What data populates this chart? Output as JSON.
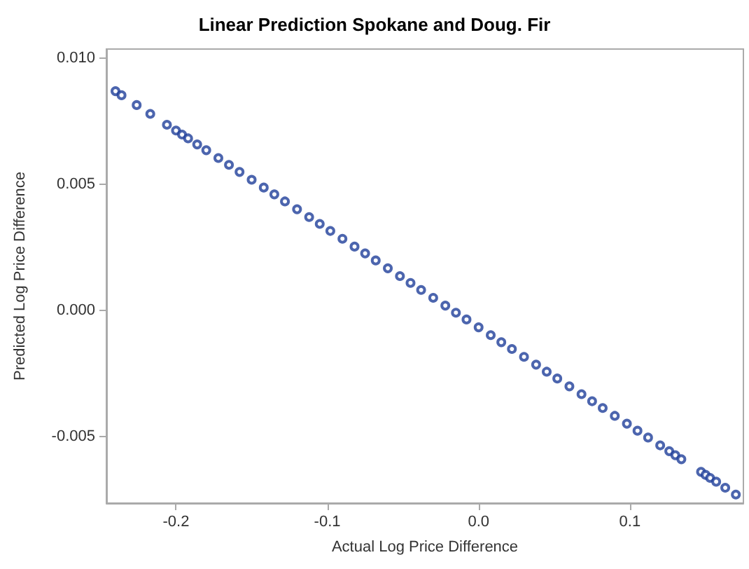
{
  "chart_data": {
    "type": "scatter",
    "title": "Linear Prediction Spokane and Doug. Fir",
    "xlabel": "Actual Log Price Difference",
    "ylabel": "Predicted Log Price Difference",
    "x": [
      -0.24,
      -0.236,
      -0.226,
      -0.217,
      -0.206,
      -0.2,
      -0.196,
      -0.192,
      -0.186,
      -0.18,
      -0.172,
      -0.165,
      -0.158,
      -0.15,
      -0.142,
      -0.135,
      -0.128,
      -0.12,
      -0.112,
      -0.105,
      -0.098,
      -0.09,
      -0.082,
      -0.075,
      -0.068,
      -0.06,
      -0.052,
      -0.045,
      -0.038,
      -0.03,
      -0.022,
      -0.015,
      -0.008,
      0.0,
      0.008,
      0.015,
      0.022,
      0.03,
      0.038,
      0.045,
      0.052,
      0.06,
      0.068,
      0.075,
      0.082,
      0.09,
      0.098,
      0.105,
      0.112,
      0.12,
      0.126,
      0.13,
      0.134,
      0.147,
      0.15,
      0.153,
      0.157,
      0.163,
      0.17
    ],
    "series": [
      {
        "color": "#1f3f9a",
        "values": [
          0.00868,
          0.00852,
          0.00813,
          0.00778,
          0.00735,
          0.00712,
          0.00696,
          0.00681,
          0.00657,
          0.00634,
          0.00603,
          0.00576,
          0.00548,
          0.00517,
          0.00486,
          0.00459,
          0.00431,
          0.004,
          0.00369,
          0.00342,
          0.00314,
          0.00283,
          0.00252,
          0.00225,
          0.00197,
          0.00166,
          0.00135,
          0.00108,
          0.0008,
          0.00049,
          0.00018,
          -0.0001,
          -0.00037,
          -0.00068,
          -0.00099,
          -0.00127,
          -0.00154,
          -0.00185,
          -0.00216,
          -0.00244,
          -0.00271,
          -0.00302,
          -0.00333,
          -0.00361,
          -0.00388,
          -0.00419,
          -0.0045,
          -0.00478,
          -0.00505,
          -0.00536,
          -0.00559,
          -0.00575,
          -0.00591,
          -0.00641,
          -0.00653,
          -0.00665,
          -0.0068,
          -0.00704,
          -0.00731
        ]
      }
    ],
    "xlim": [
      -0.246,
      0.175
    ],
    "xticks": [
      {
        "value": -0.2,
        "label": "-0.2"
      },
      {
        "value": -0.1,
        "label": "-0.1"
      },
      {
        "value": 0,
        "label": "0.0"
      },
      {
        "value": 0.1,
        "label": "0.1"
      }
    ],
    "ylim": [
      -0.00765,
      0.01035
    ],
    "yticks": [
      {
        "value": -0.005,
        "label": "-0.005"
      },
      {
        "value": 0,
        "label": "0.000"
      },
      {
        "value": 0.005,
        "label": "0.005"
      },
      {
        "value": 0.01,
        "label": "0.010"
      }
    ],
    "marker": "circle",
    "grid": false
  }
}
